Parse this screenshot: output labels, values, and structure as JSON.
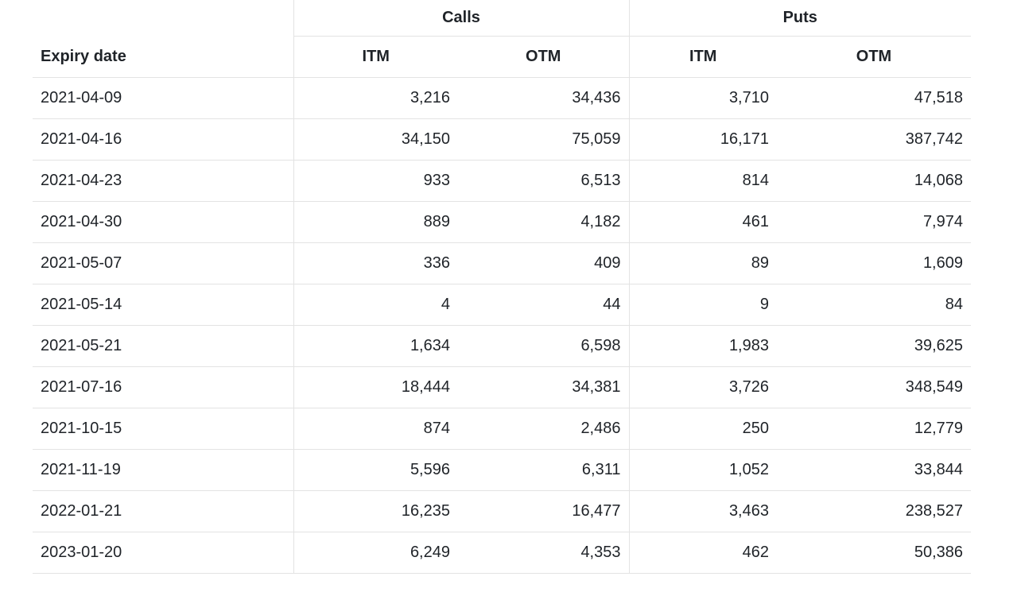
{
  "groups": {
    "calls": "Calls",
    "puts": "Puts"
  },
  "headers": {
    "expiry": "Expiry date",
    "calls_itm": "ITM",
    "calls_otm": "OTM",
    "puts_itm": "ITM",
    "puts_otm": "OTM"
  },
  "rows": [
    {
      "expiry": "2021-04-09",
      "calls_itm": "3,216",
      "calls_otm": "34,436",
      "puts_itm": "3,710",
      "puts_otm": "47,518"
    },
    {
      "expiry": "2021-04-16",
      "calls_itm": "34,150",
      "calls_otm": "75,059",
      "puts_itm": "16,171",
      "puts_otm": "387,742"
    },
    {
      "expiry": "2021-04-23",
      "calls_itm": "933",
      "calls_otm": "6,513",
      "puts_itm": "814",
      "puts_otm": "14,068"
    },
    {
      "expiry": "2021-04-30",
      "calls_itm": "889",
      "calls_otm": "4,182",
      "puts_itm": "461",
      "puts_otm": "7,974"
    },
    {
      "expiry": "2021-05-07",
      "calls_itm": "336",
      "calls_otm": "409",
      "puts_itm": "89",
      "puts_otm": "1,609"
    },
    {
      "expiry": "2021-05-14",
      "calls_itm": "4",
      "calls_otm": "44",
      "puts_itm": "9",
      "puts_otm": "84"
    },
    {
      "expiry": "2021-05-21",
      "calls_itm": "1,634",
      "calls_otm": "6,598",
      "puts_itm": "1,983",
      "puts_otm": "39,625"
    },
    {
      "expiry": "2021-07-16",
      "calls_itm": "18,444",
      "calls_otm": "34,381",
      "puts_itm": "3,726",
      "puts_otm": "348,549"
    },
    {
      "expiry": "2021-10-15",
      "calls_itm": "874",
      "calls_otm": "2,486",
      "puts_itm": "250",
      "puts_otm": "12,779"
    },
    {
      "expiry": "2021-11-19",
      "calls_itm": "5,596",
      "calls_otm": "6,311",
      "puts_itm": "1,052",
      "puts_otm": "33,844"
    },
    {
      "expiry": "2022-01-21",
      "calls_itm": "16,235",
      "calls_otm": "16,477",
      "puts_itm": "3,463",
      "puts_otm": "238,527"
    },
    {
      "expiry": "2023-01-20",
      "calls_itm": "6,249",
      "calls_otm": "4,353",
      "puts_itm": "462",
      "puts_otm": "50,386"
    }
  ]
}
